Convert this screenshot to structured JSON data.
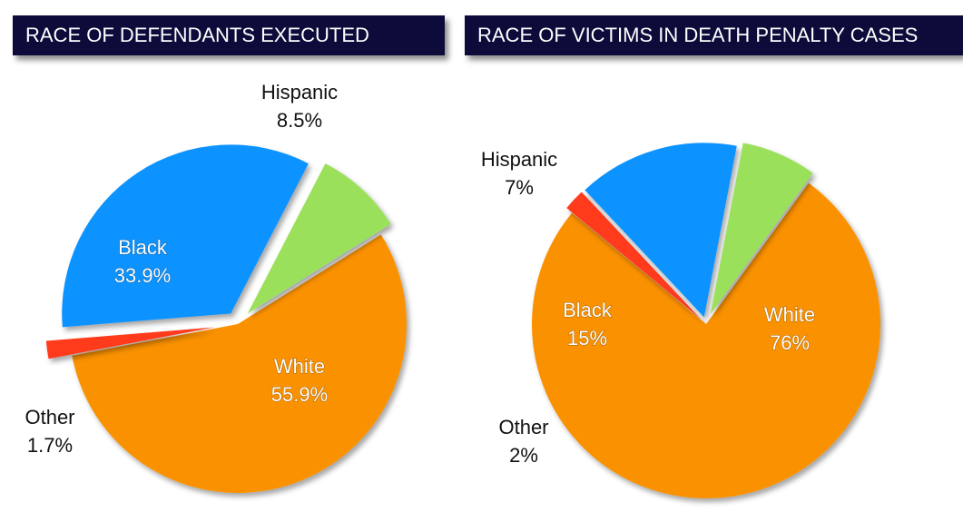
{
  "chart_data": [
    {
      "type": "pie",
      "title": "RACE OF DEFENDANTS EXECUTED",
      "slices": [
        {
          "name": "White",
          "value": 55.9,
          "label": "55.9%",
          "color": "#fa9100"
        },
        {
          "name": "Other",
          "value": 1.7,
          "label": "1.7%",
          "color": "#ff3b1f"
        },
        {
          "name": "Black",
          "value": 33.9,
          "label": "33.9%",
          "color": "#0a93ff"
        },
        {
          "name": "Hispanic",
          "value": 8.5,
          "label": "8.5%",
          "color": "#9be05a"
        }
      ]
    },
    {
      "type": "pie",
      "title": "RACE OF VICTIMS IN DEATH PENALTY CASES",
      "slices": [
        {
          "name": "White",
          "value": 76,
          "label": "76%",
          "color": "#fa9100"
        },
        {
          "name": "Other",
          "value": 2,
          "label": "2%",
          "color": "#ff3b1f"
        },
        {
          "name": "Black",
          "value": 15,
          "label": "15%",
          "color": "#0a93ff"
        },
        {
          "name": "Hispanic",
          "value": 7,
          "label": "7%",
          "color": "#9be05a"
        }
      ]
    }
  ]
}
